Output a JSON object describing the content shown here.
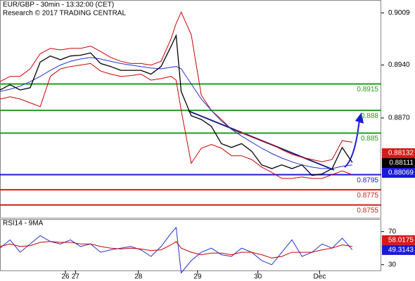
{
  "chart_data": [
    {
      "type": "line",
      "title": "EUR/GBP - 30min - 13:32:00 (CET)",
      "subtitle": "Research © 2017 TRADING CENTRAL",
      "x": [
        0,
        8,
        16,
        24,
        32,
        40,
        48,
        56,
        64,
        72,
        80,
        88,
        96,
        104,
        112,
        120,
        128,
        136,
        140,
        144,
        152,
        160,
        168,
        176,
        184,
        192,
        200,
        208,
        216,
        224,
        232,
        240,
        248,
        256,
        264,
        272,
        280
      ],
      "series": [
        {
          "color": "#cc0000",
          "values": [
            0.8918,
            0.8925,
            0.8925,
            0.8935,
            0.8955,
            0.8962,
            0.896,
            0.8962,
            0.8962,
            0.8965,
            0.8958,
            0.895,
            0.8945,
            0.8942,
            0.8942,
            0.894,
            0.8945,
            0.8975,
            0.8995,
            0.901,
            0.898,
            0.89,
            0.888,
            0.8868,
            0.8855,
            0.885,
            0.8845,
            0.884,
            0.8835,
            0.8828,
            0.8822,
            0.8818,
            0.8815,
            0.8812,
            0.8815,
            0.884,
            0.8838
          ]
        },
        {
          "color": "#cc0000",
          "values": [
            0.8895,
            0.8898,
            0.8895,
            0.889,
            0.8885,
            0.8925,
            0.8935,
            0.8938,
            0.894,
            0.8942,
            0.8932,
            0.8928,
            0.8925,
            0.8926,
            0.8928,
            0.892,
            0.8922,
            0.8925,
            0.892,
            0.888,
            0.881,
            0.883,
            0.8835,
            0.883,
            0.882,
            0.882,
            0.8815,
            0.8805,
            0.8798,
            0.879,
            0.879,
            0.8792,
            0.879,
            0.879,
            0.8795,
            0.88,
            0.8795
          ]
        },
        {
          "color": "#2233cc",
          "values": [
            0.8905,
            0.8908,
            0.8912,
            0.8918,
            0.8925,
            0.8933,
            0.894,
            0.8945,
            0.8948,
            0.895,
            0.8948,
            0.8945,
            0.8942,
            0.894,
            0.8938,
            0.8936,
            0.8935,
            0.8937,
            0.8938,
            0.8935,
            0.8915,
            0.8895,
            0.888,
            0.8866,
            0.8855,
            0.8846,
            0.8838,
            0.883,
            0.8823,
            0.8817,
            0.8812,
            0.8808,
            0.8805,
            0.8803,
            0.8803,
            0.8806,
            0.8808
          ]
        },
        {
          "color": "#000000",
          "values": [
            0.8907,
            0.8914,
            0.8907,
            0.891,
            0.8944,
            0.8952,
            0.8947,
            0.8952,
            0.8953,
            0.8956,
            0.8942,
            0.8938,
            0.8933,
            0.8933,
            0.8933,
            0.8928,
            0.8938,
            0.8965,
            0.8979,
            0.8905,
            0.8873,
            0.8868,
            0.8859,
            0.8836,
            0.8831,
            0.8836,
            0.8826,
            0.8808,
            0.8803,
            0.8808,
            0.8803,
            0.8808,
            0.8794,
            0.8796,
            0.8803,
            0.8831,
            0.8811
          ]
        }
      ],
      "levels": [
        {
          "value": 0.8915,
          "color": "#1e9e1e"
        },
        {
          "value": 0.888,
          "color": "#1e9e1e"
        },
        {
          "value": 0.885,
          "color": "#1e9e1e"
        },
        {
          "value": 0.8795,
          "color": "#1a1ad6"
        },
        {
          "value": 0.8775,
          "color": "#d61a1a"
        },
        {
          "value": 0.8755,
          "color": "#d61a1a"
        }
      ],
      "price_labels": [
        {
          "value": 0.88132,
          "color": "#d61a1a"
        },
        {
          "value": 0.88111,
          "color": "#000000"
        },
        {
          "value": 0.88069,
          "color": "#1a1ad6"
        }
      ],
      "xlim": [
        0,
        303
      ],
      "ylim": [
        0.8738,
        0.9026
      ],
      "yticks": [
        0.9009,
        {
          "value": 0.894,
          "label": "0.8940"
        },
        {
          "value": 0.887,
          "label": "0.8870"
        }
      ]
    },
    {
      "type": "line",
      "title": "RSI14 - 9MA",
      "x": [
        0,
        8,
        16,
        24,
        32,
        40,
        48,
        56,
        64,
        72,
        80,
        88,
        96,
        104,
        112,
        120,
        128,
        136,
        140,
        144,
        152,
        160,
        168,
        176,
        184,
        192,
        200,
        208,
        216,
        224,
        232,
        240,
        248,
        256,
        264,
        272,
        280
      ],
      "series": [
        {
          "color": "#2233cc",
          "values": [
            50,
            60,
            45,
            55,
            65,
            58,
            55,
            60,
            52,
            55,
            45,
            48,
            50,
            52,
            48,
            40,
            52,
            68,
            75,
            20,
            35,
            45,
            50,
            42,
            40,
            50,
            45,
            35,
            30,
            45,
            60,
            40,
            45,
            55,
            50,
            62,
            48
          ]
        },
        {
          "color": "#cc0000",
          "values": [
            52,
            55,
            52,
            53,
            57,
            58,
            57,
            57,
            55,
            55,
            52,
            50,
            49,
            50,
            49,
            47,
            48,
            54,
            58,
            50,
            45,
            42,
            44,
            44,
            42,
            45,
            45,
            42,
            38,
            40,
            45,
            45,
            45,
            48,
            50,
            54,
            52
          ]
        }
      ],
      "price_labels": [
        {
          "value": 58.0175,
          "color": "#d61a1a"
        },
        {
          "value": 49.3143,
          "color": "#1a1ad6"
        }
      ],
      "xlim": [
        0,
        303
      ],
      "ylim": [
        23,
        85
      ],
      "yticks": [
        70,
        30
      ],
      "xticks": [
        {
          "value": 52,
          "label": "26"
        },
        {
          "value": 60,
          "label": "27"
        },
        {
          "value": 110,
          "label": "28"
        },
        {
          "value": 157,
          "label": "29"
        },
        {
          "value": 205,
          "label": "30"
        },
        {
          "value": 254,
          "label": "Dec"
        }
      ]
    }
  ]
}
